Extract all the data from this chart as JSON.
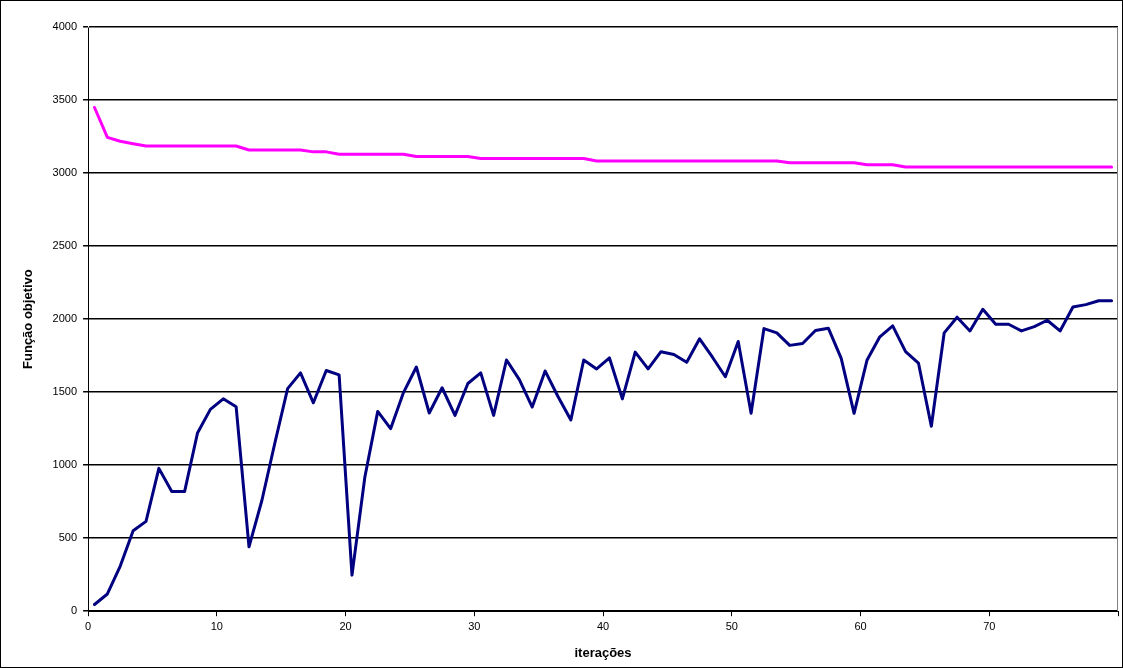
{
  "chart_data": {
    "type": "line",
    "xlabel": "iterações",
    "ylabel": "Função objetivo",
    "x": [
      0.5,
      1.5,
      2.5,
      3.5,
      4.5,
      5.5,
      6.5,
      7.5,
      8.5,
      9.5,
      10.5,
      11.5,
      12.5,
      13.5,
      14.5,
      15.5,
      16.5,
      17.5,
      18.5,
      19.5,
      20.5,
      21.5,
      22.5,
      23.5,
      24.5,
      25.5,
      26.5,
      27.5,
      28.5,
      29.5,
      30.5,
      31.5,
      32.5,
      33.5,
      34.5,
      35.5,
      36.5,
      37.5,
      38.5,
      39.5,
      40.5,
      41.5,
      42.5,
      43.5,
      44.5,
      45.5,
      46.5,
      47.5,
      48.5,
      49.5,
      50.5,
      51.5,
      52.5,
      53.5,
      54.5,
      55.5,
      56.5,
      57.5,
      58.5,
      59.5,
      60.5,
      61.5,
      62.5,
      63.5,
      64.5,
      65.5,
      66.5,
      67.5,
      68.5,
      69.5,
      70.5,
      71.5,
      72.5,
      73.5,
      74.5,
      75.5,
      76.5,
      77.5,
      78.5,
      79.5
    ],
    "series": [
      {
        "color": "#ff00ff",
        "values": [
          3449,
          3244,
          3218,
          3201,
          3185,
          3185,
          3185,
          3185,
          3185,
          3185,
          3185,
          3185,
          3158,
          3158,
          3158,
          3158,
          3158,
          3145,
          3145,
          3129,
          3129,
          3129,
          3129,
          3129,
          3129,
          3113,
          3113,
          3113,
          3113,
          3113,
          3099,
          3099,
          3099,
          3099,
          3099,
          3099,
          3099,
          3099,
          3099,
          3083,
          3083,
          3083,
          3083,
          3083,
          3083,
          3083,
          3083,
          3083,
          3083,
          3083,
          3083,
          3083,
          3083,
          3083,
          3070,
          3070,
          3070,
          3070,
          3070,
          3070,
          3057,
          3057,
          3057,
          3041,
          3041,
          3041,
          3041,
          3041,
          3041,
          3041,
          3041,
          3041,
          3041,
          3041,
          3041,
          3041,
          3041,
          3041,
          3041,
          3041
        ]
      },
      {
        "color": "#000080",
        "values": [
          46,
          118,
          309,
          551,
          615,
          978,
          820,
          820,
          1220,
          1382,
          1454,
          1400,
          441,
          758,
          1148,
          1524,
          1632,
          1427,
          1648,
          1618,
          247,
          919,
          1368,
          1250,
          1497,
          1672,
          1357,
          1530,
          1341,
          1559,
          1632,
          1341,
          1720,
          1586,
          1398,
          1645,
          1470,
          1309,
          1720,
          1659,
          1734,
          1454,
          1774,
          1659,
          1777,
          1758,
          1704,
          1865,
          1739,
          1605,
          1847,
          1355,
          1935,
          1906,
          1820,
          1833,
          1922,
          1938,
          1731,
          1355,
          1718,
          1879,
          1954,
          1777,
          1699,
          1266,
          1906,
          2013,
          1919,
          2067,
          1965,
          1965,
          1919,
          1949,
          1992,
          1919,
          2083,
          2099,
          2126,
          2126
        ]
      }
    ],
    "xlim": [
      0,
      80
    ],
    "xticks": [
      0,
      10,
      20,
      30,
      40,
      50,
      60,
      70,
      {
        "value": 80,
        "label": null
      }
    ],
    "ylim": [
      0,
      4000
    ],
    "yticks": [
      0,
      500,
      1000,
      1500,
      2000,
      2500,
      3000,
      3500,
      4000
    ],
    "grid": "y",
    "marker": "none",
    "line_style": "solid"
  }
}
